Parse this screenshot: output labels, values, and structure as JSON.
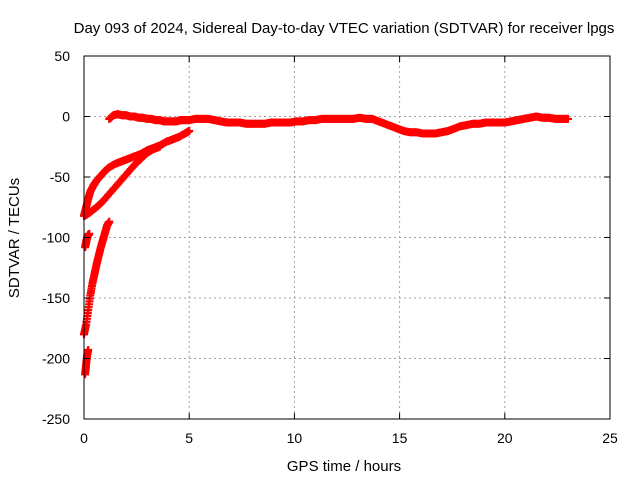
{
  "chart_data": {
    "type": "scatter",
    "title": "Day 093 of 2024, Sidereal Day-to-day VTEC variation (SDTVAR) for receiver lpgs",
    "xlabel": "GPS time / hours",
    "ylabel": "SDTVAR / TECUs",
    "xlim": [
      0,
      25
    ],
    "ylim": [
      -250,
      50
    ],
    "xticks": [
      "0",
      "5",
      "10",
      "15",
      "20",
      "25"
    ],
    "yticks": [
      "50",
      "0",
      "-50",
      "-100",
      "-150",
      "-200",
      "-250"
    ],
    "grid": true,
    "legend": "none",
    "marker": "+",
    "color": "#ff0000",
    "series": [
      {
        "points": [
          [
            0.0,
            -82
          ],
          [
            0.1,
            -75
          ],
          [
            0.2,
            -68
          ],
          [
            0.3,
            -62
          ],
          [
            0.45,
            -57
          ],
          [
            0.6,
            -53
          ],
          [
            0.8,
            -49
          ],
          [
            1.0,
            -45
          ],
          [
            1.2,
            -42
          ],
          [
            1.5,
            -39
          ],
          [
            1.8,
            -37
          ],
          [
            2.1,
            -35
          ],
          [
            2.4,
            -33
          ],
          [
            2.7,
            -31
          ],
          [
            3.0,
            -28
          ],
          [
            3.3,
            -26
          ],
          [
            3.6,
            -24
          ],
          [
            3.9,
            -21
          ],
          [
            4.2,
            -19
          ],
          [
            4.5,
            -17
          ],
          [
            4.8,
            -14
          ],
          [
            5.0,
            -12
          ],
          [
            0.05,
            -82
          ],
          [
            0.3,
            -79
          ],
          [
            0.6,
            -75
          ],
          [
            0.9,
            -70
          ],
          [
            1.2,
            -64
          ],
          [
            1.5,
            -58
          ],
          [
            1.8,
            -52
          ],
          [
            2.1,
            -46
          ],
          [
            2.4,
            -40
          ],
          [
            2.7,
            -35
          ],
          [
            3.0,
            -30
          ],
          [
            3.3,
            -27
          ],
          [
            3.6,
            -25
          ],
          [
            0.0,
            -180
          ],
          [
            0.1,
            -172
          ],
          [
            0.2,
            -160
          ],
          [
            0.3,
            -148
          ],
          [
            0.4,
            -138
          ],
          [
            0.5,
            -130
          ],
          [
            0.6,
            -122
          ],
          [
            0.7,
            -115
          ],
          [
            0.8,
            -108
          ],
          [
            0.9,
            -102
          ],
          [
            1.0,
            -96
          ],
          [
            1.1,
            -90
          ],
          [
            1.2,
            -87
          ],
          [
            0.05,
            -108
          ],
          [
            0.1,
            -104
          ],
          [
            0.15,
            -100
          ],
          [
            0.2,
            -98
          ],
          [
            0.25,
            -97
          ],
          [
            0.05,
            -213
          ],
          [
            0.1,
            -205
          ],
          [
            0.15,
            -197
          ],
          [
            0.2,
            -193
          ],
          [
            1.2,
            -2
          ],
          [
            1.4,
            1
          ],
          [
            1.6,
            2
          ],
          [
            1.8,
            1
          ],
          [
            2.0,
            1
          ],
          [
            2.2,
            0
          ],
          [
            2.4,
            0
          ],
          [
            2.6,
            -1
          ],
          [
            2.8,
            -1
          ],
          [
            3.0,
            -2
          ],
          [
            3.2,
            -2
          ],
          [
            3.4,
            -3
          ],
          [
            3.6,
            -3
          ],
          [
            3.8,
            -4
          ],
          [
            4.0,
            -4
          ],
          [
            4.2,
            -4
          ],
          [
            4.4,
            -4
          ],
          [
            4.6,
            -3
          ],
          [
            4.8,
            -3
          ],
          [
            5.0,
            -3
          ],
          [
            5.3,
            -2
          ],
          [
            5.6,
            -2
          ],
          [
            5.9,
            -2
          ],
          [
            6.2,
            -3
          ],
          [
            6.5,
            -4
          ],
          [
            6.8,
            -5
          ],
          [
            7.1,
            -5
          ],
          [
            7.4,
            -5
          ],
          [
            7.7,
            -6
          ],
          [
            8.0,
            -6
          ],
          [
            8.3,
            -6
          ],
          [
            8.6,
            -6
          ],
          [
            8.9,
            -5
          ],
          [
            9.2,
            -5
          ],
          [
            9.5,
            -5
          ],
          [
            9.8,
            -5
          ],
          [
            10.1,
            -4
          ],
          [
            10.4,
            -4
          ],
          [
            10.7,
            -3
          ],
          [
            11.0,
            -3
          ],
          [
            11.3,
            -2
          ],
          [
            11.6,
            -2
          ],
          [
            11.9,
            -2
          ],
          [
            12.2,
            -2
          ],
          [
            12.5,
            -2
          ],
          [
            12.8,
            -2
          ],
          [
            13.1,
            -1
          ],
          [
            13.4,
            -2
          ],
          [
            13.7,
            -2
          ],
          [
            14.0,
            -4
          ],
          [
            14.3,
            -6
          ],
          [
            14.6,
            -8
          ],
          [
            14.9,
            -10
          ],
          [
            15.2,
            -12
          ],
          [
            15.5,
            -13
          ],
          [
            15.8,
            -13
          ],
          [
            16.1,
            -14
          ],
          [
            16.4,
            -14
          ],
          [
            16.7,
            -14
          ],
          [
            17.0,
            -13
          ],
          [
            17.3,
            -12
          ],
          [
            17.6,
            -10
          ],
          [
            17.9,
            -8
          ],
          [
            18.2,
            -7
          ],
          [
            18.5,
            -6
          ],
          [
            18.8,
            -6
          ],
          [
            19.1,
            -5
          ],
          [
            19.4,
            -5
          ],
          [
            19.7,
            -5
          ],
          [
            20.0,
            -5
          ],
          [
            20.3,
            -4
          ],
          [
            20.6,
            -3
          ],
          [
            20.9,
            -2
          ],
          [
            21.2,
            -1
          ],
          [
            21.5,
            0
          ],
          [
            21.8,
            -1
          ],
          [
            22.1,
            -1
          ],
          [
            22.4,
            -2
          ],
          [
            22.7,
            -2
          ],
          [
            23.0,
            -2
          ]
        ]
      }
    ]
  }
}
